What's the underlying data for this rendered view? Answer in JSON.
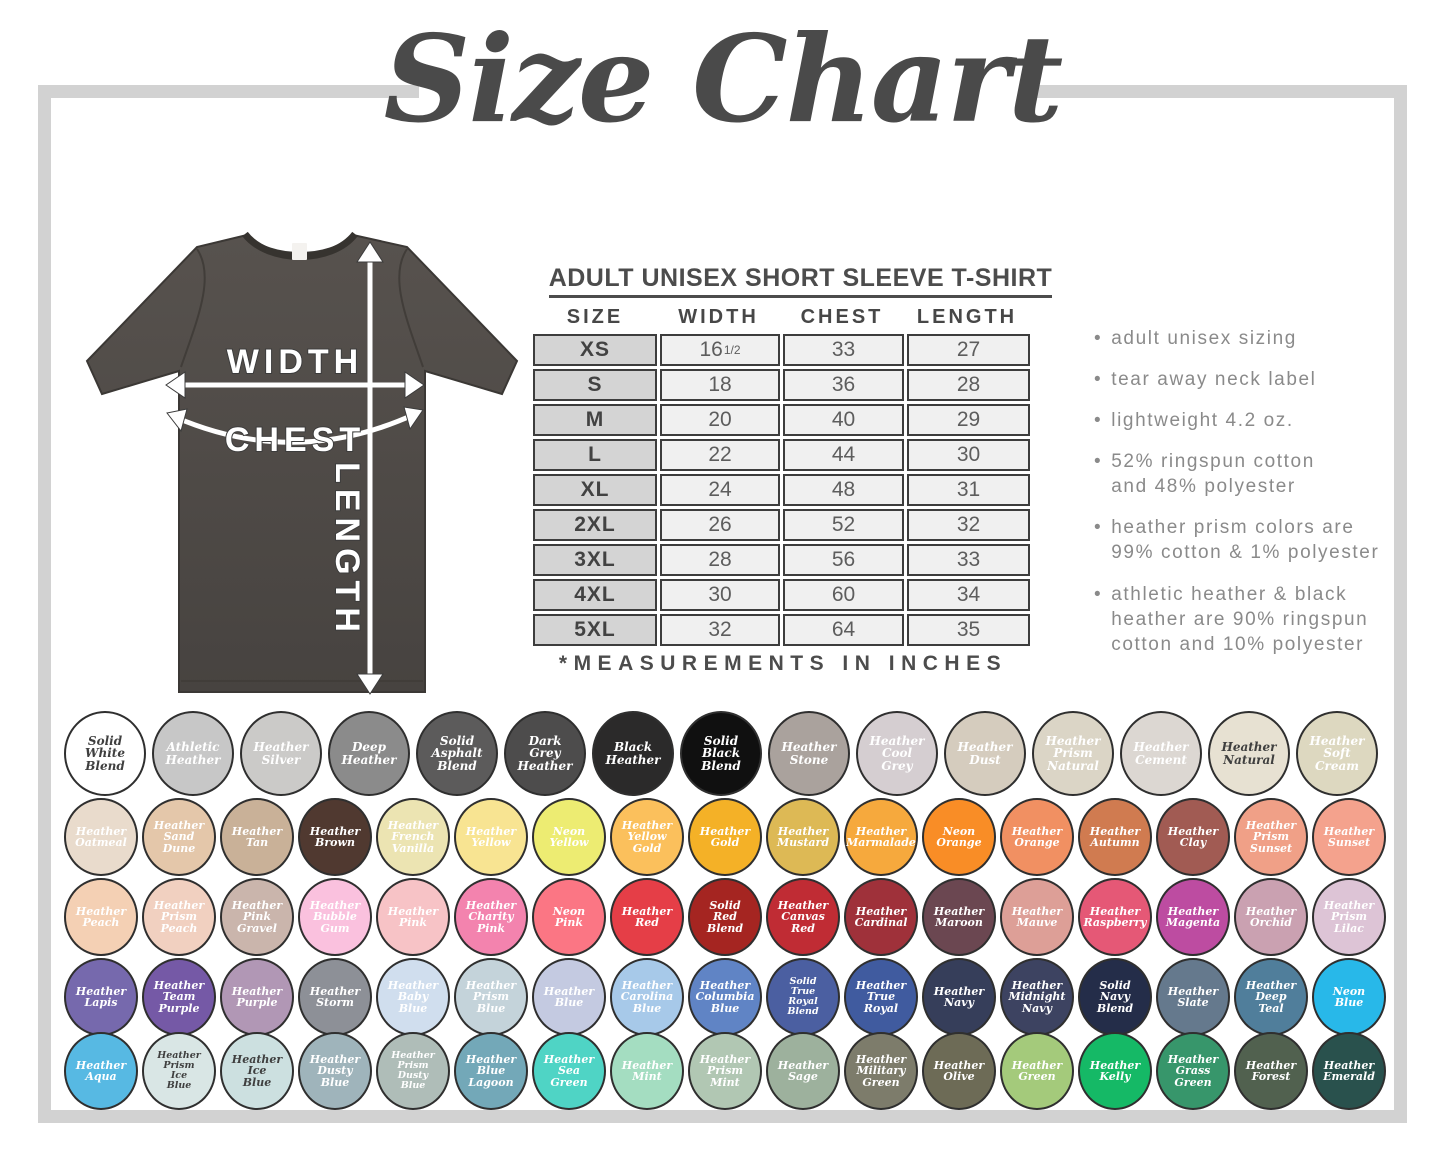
{
  "title": "Size Chart",
  "diagram": {
    "width_label": "WIDTH",
    "chest_label": "CHEST",
    "length_label": "LENGTH"
  },
  "product": {
    "heading": "ADULT UNISEX SHORT SLEEVE T-SHIRT",
    "columns": [
      "SIZE",
      "WIDTH",
      "CHEST",
      "LENGTH"
    ],
    "rows": [
      [
        "XS",
        {
          "v": "16",
          "sup": "1/2"
        },
        "33",
        "27"
      ],
      [
        "S",
        "18",
        "36",
        "28"
      ],
      [
        "M",
        "20",
        "40",
        "29"
      ],
      [
        "L",
        "22",
        "44",
        "30"
      ],
      [
        "XL",
        "24",
        "48",
        "31"
      ],
      [
        "2XL",
        "26",
        "52",
        "32"
      ],
      [
        "3XL",
        "28",
        "56",
        "33"
      ],
      [
        "4XL",
        "30",
        "60",
        "34"
      ],
      [
        "5XL",
        "32",
        "64",
        "35"
      ]
    ],
    "footnote": "*MEASUREMENTS IN INCHES"
  },
  "bullets": [
    [
      "adult unisex sizing"
    ],
    [
      "tear away neck label"
    ],
    [
      "lightweight 4.2 oz."
    ],
    [
      "52% ringspun cotton",
      "and 48% polyester"
    ],
    [
      "heather prism colors are",
      "99% cotton & 1% polyester"
    ],
    [
      "athletic heather &  black",
      "heather are 90% ringspun",
      "cotton and 10% polyester"
    ]
  ],
  "chart_data": {
    "type": "table",
    "title": "ADULT UNISEX SHORT SLEEVE T-SHIRT",
    "columns": [
      "SIZE",
      "WIDTH",
      "CHEST",
      "LENGTH"
    ],
    "rows": [
      [
        "XS",
        "16 1/2",
        "33",
        "27"
      ],
      [
        "S",
        "18",
        "36",
        "28"
      ],
      [
        "M",
        "20",
        "40",
        "29"
      ],
      [
        "L",
        "22",
        "44",
        "30"
      ],
      [
        "XL",
        "24",
        "48",
        "31"
      ],
      [
        "2XL",
        "26",
        "52",
        "32"
      ],
      [
        "3XL",
        "28",
        "56",
        "33"
      ],
      [
        "4XL",
        "30",
        "60",
        "34"
      ],
      [
        "5XL",
        "32",
        "64",
        "35"
      ]
    ],
    "units": "inches",
    "note": "*MEASUREMENTS IN INCHES"
  },
  "color_swatches": [
    [
      {
        "name": "Solid White Blend",
        "color": "#ffffff",
        "text": "dark"
      },
      {
        "name": "Athletic Heather",
        "color": "#c7c7c7"
      },
      {
        "name": "Heather Silver",
        "color": "#cbcac8"
      },
      {
        "name": "Deep Heather",
        "color": "#8b8b8b"
      },
      {
        "name": "Solid Asphalt Blend",
        "color": "#5c5b5b"
      },
      {
        "name": "Dark Grey Heather",
        "color": "#4d4c4c"
      },
      {
        "name": "Black Heather",
        "color": "#2b2a2a"
      },
      {
        "name": "Solid Black Blend",
        "color": "#101010"
      },
      {
        "name": "Heather Stone",
        "color": "#aaa29d"
      },
      {
        "name": "Heather Cool Grey",
        "color": "#d5ced1"
      },
      {
        "name": "Heather Dust",
        "color": "#d5ccbe"
      },
      {
        "name": "Heather Prism Natural",
        "color": "#dbd5c6"
      },
      {
        "name": "Heather Cement",
        "color": "#dcd7d2"
      },
      {
        "name": "Heather Natural",
        "color": "#e7e1d2",
        "text": "dark"
      },
      {
        "name": "Heather Soft Cream",
        "color": "#ddd8c0"
      }
    ],
    [
      {
        "name": "Heather Oatmeal",
        "color": "#e9dbcc"
      },
      {
        "name": "Heather Sand Dune",
        "color": "#e4c7aa"
      },
      {
        "name": "Heather Tan",
        "color": "#c9b198"
      },
      {
        "name": "Heather Brown",
        "color": "#503930"
      },
      {
        "name": "Heather French Vanilla",
        "color": "#ece4b2"
      },
      {
        "name": "Heather Yellow",
        "color": "#f8e492"
      },
      {
        "name": "Neon Yellow",
        "color": "#edec72"
      },
      {
        "name": "Heather Yellow Gold",
        "color": "#fbc05c"
      },
      {
        "name": "Heather Gold",
        "color": "#f4b127"
      },
      {
        "name": "Heather Mustard",
        "color": "#ddb955"
      },
      {
        "name": "Heather Marmalade",
        "color": "#f6a93d"
      },
      {
        "name": "Neon Orange",
        "color": "#f98d26"
      },
      {
        "name": "Heather Orange",
        "color": "#f19062"
      },
      {
        "name": "Heather Autumn",
        "color": "#d07b50"
      },
      {
        "name": "Heather Clay",
        "color": "#a15b53"
      },
      {
        "name": "Heather Prism Sunset",
        "color": "#f0a087"
      },
      {
        "name": "Heather Sunset",
        "color": "#f4a28d"
      }
    ],
    [
      {
        "name": "Heather Peach",
        "color": "#f4d0b4"
      },
      {
        "name": "Heather Prism Peach",
        "color": "#f1d0c0"
      },
      {
        "name": "Heather Pink Gravel",
        "color": "#cab5ac"
      },
      {
        "name": "Heather Bubble Gum",
        "color": "#fac1de"
      },
      {
        "name": "Heather Pink",
        "color": "#f7c3c6"
      },
      {
        "name": "Heather Charity Pink",
        "color": "#f383ae"
      },
      {
        "name": "Neon Pink",
        "color": "#fb7684"
      },
      {
        "name": "Heather Red",
        "color": "#e53e47"
      },
      {
        "name": "Solid Red Blend",
        "color": "#a52521"
      },
      {
        "name": "Heather Canvas Red",
        "color": "#c02c34"
      },
      {
        "name": "Heather Cardinal",
        "color": "#9f313a"
      },
      {
        "name": "Heather Maroon",
        "color": "#6b4751"
      },
      {
        "name": "Heather Mauve",
        "color": "#dd9f97"
      },
      {
        "name": "Heather Raspberry",
        "color": "#e55876"
      },
      {
        "name": "Heather Magenta",
        "color": "#bd4ca1"
      },
      {
        "name": "Heather Orchid",
        "color": "#caa1b1"
      },
      {
        "name": "Heather Prism Lilac",
        "color": "#ddc4d6"
      }
    ],
    [
      {
        "name": "Heather Lapis",
        "color": "#7669ad"
      },
      {
        "name": "Heather Team Purple",
        "color": "#7559a6"
      },
      {
        "name": "Heather Purple",
        "color": "#b197b5"
      },
      {
        "name": "Heather Storm",
        "color": "#8d9097"
      },
      {
        "name": "Heather Baby Blue",
        "color": "#d0deee"
      },
      {
        "name": "Heather Prism Blue",
        "color": "#c4d3da"
      },
      {
        "name": "Heather Blue",
        "color": "#c4cae1"
      },
      {
        "name": "Heather Carolina Blue",
        "color": "#a7c9e9"
      },
      {
        "name": "Heather Columbia Blue",
        "color": "#6084c5"
      },
      {
        "name": "Solid True Royal Blend",
        "color": "#4b5fa1"
      },
      {
        "name": "Heather True Royal",
        "color": "#405b9f"
      },
      {
        "name": "Heather Navy",
        "color": "#363e5a"
      },
      {
        "name": "Heather Midnight Navy",
        "color": "#3d4361"
      },
      {
        "name": "Solid Navy Blend",
        "color": "#242d49"
      },
      {
        "name": "Heather Slate",
        "color": "#65798d"
      },
      {
        "name": "Heather Deep Teal",
        "color": "#507e9b"
      },
      {
        "name": "Neon Blue",
        "color": "#28b8e9"
      }
    ],
    [
      {
        "name": "Heather Aqua",
        "color": "#57b9e3"
      },
      {
        "name": "Heather Prism Ice Blue",
        "color": "#d9e6e5",
        "text": "dark"
      },
      {
        "name": "Heather Ice Blue",
        "color": "#cce0e0",
        "text": "dark"
      },
      {
        "name": "Heather Dusty Blue",
        "color": "#9fb4bb"
      },
      {
        "name": "Heather Prism Dusty Blue",
        "color": "#afbdb8"
      },
      {
        "name": "Heather Blue Lagoon",
        "color": "#73a8b8"
      },
      {
        "name": "Heather Sea Green",
        "color": "#4fd4c5"
      },
      {
        "name": "Heather Mint",
        "color": "#a4ddc1"
      },
      {
        "name": "Heather Prism Mint",
        "color": "#b1c7b3"
      },
      {
        "name": "Heather Sage",
        "color": "#9db19d"
      },
      {
        "name": "Heather Military Green",
        "color": "#7d7c6b"
      },
      {
        "name": "Heather Olive",
        "color": "#6d6b56"
      },
      {
        "name": "Heather Green",
        "color": "#a4ca7b"
      },
      {
        "name": "Heather Kelly",
        "color": "#15b966"
      },
      {
        "name": "Heather Grass Green",
        "color": "#37966b"
      },
      {
        "name": "Heather Forest",
        "color": "#51614f"
      },
      {
        "name": "Heather Emerald",
        "color": "#29514d"
      }
    ]
  ]
}
